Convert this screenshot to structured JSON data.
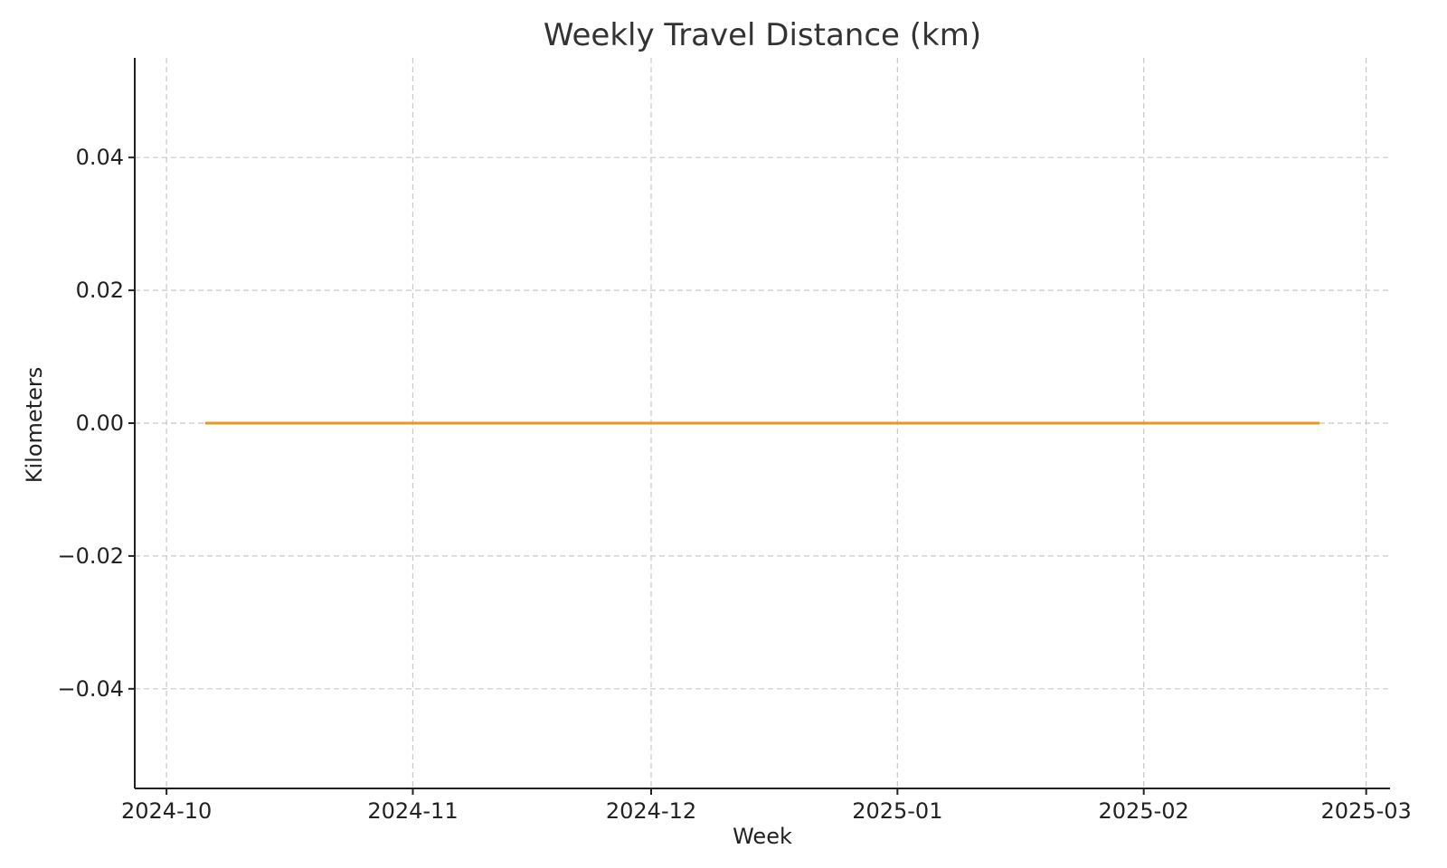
{
  "chart_data": {
    "type": "line",
    "title": "Weekly Travel Distance (km)",
    "xlabel": "Week",
    "ylabel": "Kilometers",
    "xlim": [
      "2024-09-27",
      "2025-03-04"
    ],
    "ylim": [
      -0.055,
      0.055
    ],
    "x_ticks": [
      "2024-10-01",
      "2024-11-01",
      "2024-12-01",
      "2025-01-01",
      "2025-02-01",
      "2025-03-01"
    ],
    "x_tick_labels": [
      "2024-10",
      "2024-11",
      "2024-12",
      "2025-01",
      "2025-02",
      "2025-03"
    ],
    "y_ticks": [
      0.04,
      0.02,
      0.0,
      -0.02,
      -0.04
    ],
    "y_tick_labels": [
      "0.04",
      "0.02",
      "0.00",
      "−0.02",
      "−0.04"
    ],
    "grid": true,
    "series": [
      {
        "color": "#e69a1c",
        "x": [
          "2024-10-06",
          "2024-10-13",
          "2024-10-20",
          "2024-10-27",
          "2024-11-03",
          "2024-11-10",
          "2024-11-17",
          "2024-11-24",
          "2024-12-01",
          "2024-12-08",
          "2024-12-15",
          "2024-12-22",
          "2024-12-29",
          "2025-01-05",
          "2025-01-12",
          "2025-01-19",
          "2025-01-26",
          "2025-02-02",
          "2025-02-09",
          "2025-02-16",
          "2025-02-23"
        ],
        "y": [
          0,
          0,
          0,
          0,
          0,
          0,
          0,
          0,
          0,
          0,
          0,
          0,
          0,
          0,
          0,
          0,
          0,
          0,
          0,
          0,
          0
        ]
      }
    ]
  }
}
